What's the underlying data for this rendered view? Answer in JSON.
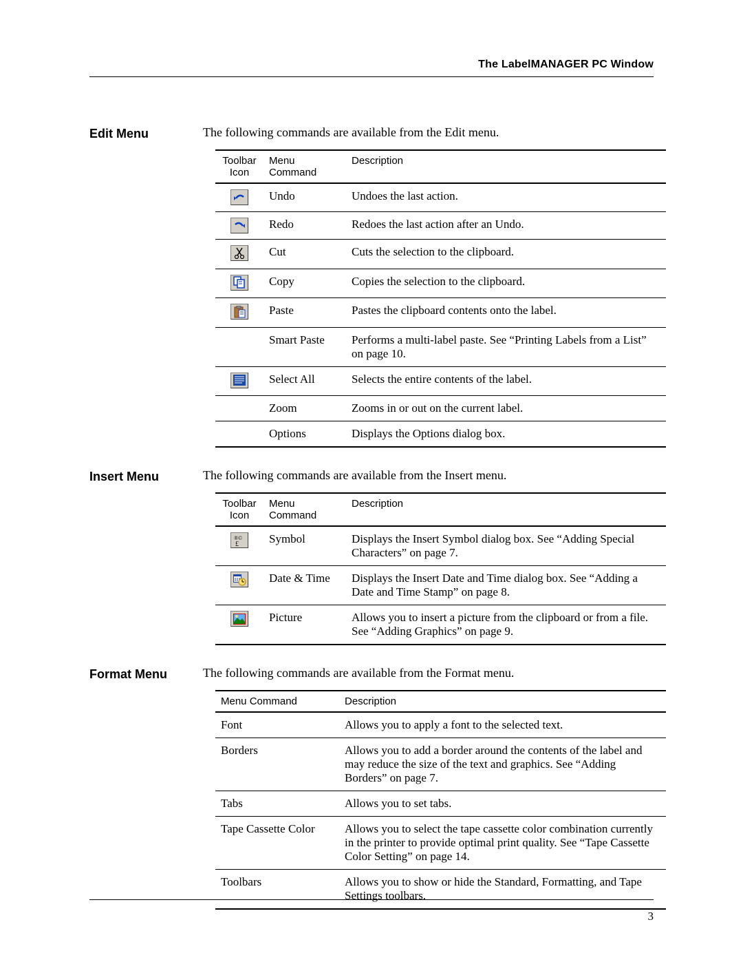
{
  "header": {
    "chapter": "The LabelMANAGER PC Window"
  },
  "page_number": "3",
  "columns": {
    "icon": "Toolbar Icon",
    "cmd": "Menu Command",
    "desc": "Description"
  },
  "sections": [
    {
      "heading": "Edit Menu",
      "intro": "The following commands are available from the Edit menu.",
      "has_icon_col": true,
      "rows": [
        {
          "icon": "undo-icon",
          "cmd": "Undo",
          "desc": "Undoes the last action."
        },
        {
          "icon": "redo-icon",
          "cmd": "Redo",
          "desc": "Redoes the last action after an Undo."
        },
        {
          "icon": "cut-icon",
          "cmd": "Cut",
          "desc": "Cuts the selection to the clipboard."
        },
        {
          "icon": "copy-icon",
          "cmd": "Copy",
          "desc": "Copies the selection to the clipboard."
        },
        {
          "icon": "paste-icon",
          "cmd": "Paste",
          "desc": "Pastes the clipboard contents onto the label."
        },
        {
          "icon": "",
          "cmd": "Smart Paste",
          "desc": "Performs a multi-label paste. See “Printing Labels from a List” on page 10."
        },
        {
          "icon": "selectall-icon",
          "cmd": "Select All",
          "desc": "Selects the entire contents of the label."
        },
        {
          "icon": "",
          "cmd": "Zoom",
          "desc": "Zooms in or out on the current label."
        },
        {
          "icon": "",
          "cmd": "Options",
          "desc": "Displays the Options dialog box."
        }
      ]
    },
    {
      "heading": "Insert Menu",
      "intro": "The following commands are available from the Insert menu.",
      "has_icon_col": true,
      "rows": [
        {
          "icon": "symbol-icon",
          "cmd": "Symbol",
          "desc": "Displays the Insert Symbol dialog box. See “Adding Special Characters” on page 7."
        },
        {
          "icon": "datetime-icon",
          "cmd": "Date & Time",
          "desc": "Displays the Insert Date and Time dialog box. See “Adding a Date and Time Stamp” on page 8."
        },
        {
          "icon": "picture-icon",
          "cmd": "Picture",
          "desc": "Allows you to insert a picture from the clipboard or from a file. See “Adding Graphics” on page 9."
        }
      ]
    },
    {
      "heading": "Format Menu",
      "intro": "The following commands are available from the Format menu.",
      "has_icon_col": false,
      "rows": [
        {
          "cmd": "Font",
          "desc": "Allows you to apply a font to the selected text."
        },
        {
          "cmd": "Borders",
          "desc": "Allows you to add a border around the contents of the label and may reduce the size of the text and graphics. See “Adding Borders” on page 7."
        },
        {
          "cmd": "Tabs",
          "desc": "Allows you to set tabs."
        },
        {
          "cmd": "Tape Cassette Color",
          "desc": "Allows you to select the tape cassette color combination currently in the printer to provide optimal print quality. See “Tape Cassette Color Setting” on page 14."
        },
        {
          "cmd": "Toolbars",
          "desc": "Allows you to show or hide the Standard, Formatting, and Tape Settings toolbars."
        }
      ]
    }
  ],
  "icon_glyphs": {
    "undo-icon": {
      "type": "svg",
      "svg": "<svg width='18' height='14' viewBox='0 0 18 14'><path d='M4 8 Q9 1 15 6' stroke='#0a3ec2' stroke-width='2.5' fill='none'/><path d='M4 8 L1 5 L1 11 Z' fill='#0a3ec2'/></svg>"
    },
    "redo-icon": {
      "type": "svg",
      "svg": "<svg width='18' height='14' viewBox='0 0 18 14'><path d='M14 8 Q9 1 3 6' stroke='#0a3ec2' stroke-width='2.5' fill='none'/><path d='M14 8 L17 5 L17 11 Z' fill='#0a3ec2'/></svg>"
    },
    "cut-icon": {
      "type": "svg",
      "svg": "<svg width='16' height='18' viewBox='0 0 16 18'><path d='M4 1 L11 12 M12 1 L5 12' stroke='#000' stroke-width='1.5' fill='none'/><circle cx='4' cy='14' r='2.5' stroke='#000' stroke-width='1.2' fill='none'/><circle cx='12' cy='14' r='2.5' stroke='#000' stroke-width='1.2' fill='none'/></svg>"
    },
    "copy-icon": {
      "type": "svg",
      "svg": "<svg width='18' height='18' viewBox='0 0 18 18'><rect x='1' y='1' width='10' height='12' fill='#fff' stroke='#0a3ec2' stroke-width='1.5'/><rect x='6' y='5' width='10' height='12' fill='#fff' stroke='#0a3ec2' stroke-width='1.5'/><line x1='8' y1='8' x2='13' y2='8' stroke='#0a3ec2'/><line x1='8' y1='11' x2='13' y2='11' stroke='#0a3ec2'/></svg>"
    },
    "paste-icon": {
      "type": "svg",
      "svg": "<svg width='18' height='18' viewBox='0 0 18 18'><rect x='2' y='2' width='12' height='15' fill='#b87333' stroke='#6b3e12'/><rect x='5' y='0' width='6' height='4' rx='1' fill='#888' stroke='#555'/><rect x='8' y='6' width='9' height='11' fill='#fff' stroke='#0a3ec2'/><line x1='10' y1='9' x2='15' y2='9' stroke='#0a3ec2'/><line x1='10' y1='12' x2='15' y2='12' stroke='#0a3ec2'/></svg>"
    },
    "selectall-icon": {
      "type": "svg",
      "svg": "<svg width='20' height='18' viewBox='0 0 20 18'><rect x='1' y='1' width='18' height='16' fill='#1b4aa6'/><line x1='3' y1='4' x2='17' y2='4' stroke='#fff'/><line x1='3' y1='7' x2='17' y2='7' stroke='#fff'/><line x1='3' y1='10' x2='17' y2='10' stroke='#fff'/><line x1='3' y1='13' x2='14' y2='13' stroke='#fff'/></svg>"
    },
    "symbol-icon": {
      "type": "svg",
      "svg": "<svg width='20' height='18' viewBox='0 0 20 18'><text x='2' y='8' font-size='8' font-family='serif' fill='#000'>®©</text><text x='4' y='17' font-size='10' font-family='serif' fill='#000'>£</text></svg>"
    },
    "datetime-icon": {
      "type": "svg",
      "svg": "<svg width='20' height='18' viewBox='0 0 20 18'><rect x='1' y='1' width='12' height='12' fill='#1b4aa6'/><rect x='2' y='4' width='10' height='8' fill='#fff'/><line x1='4' y1='6' x2='4' y2='11' stroke='#1b4aa6'/><line x1='7' y1='6' x2='7' y2='11' stroke='#1b4aa6'/><line x1='10' y1='6' x2='10' y2='11' stroke='#1b4aa6'/><circle cx='14' cy='12' r='5' fill='#ffe070' stroke='#b88800'/><line x1='14' y1='12' x2='14' y2='8.5' stroke='#000'/><line x1='14' y1='12' x2='17' y2='12' stroke='#000'/></svg>"
    },
    "picture-icon": {
      "type": "svg",
      "svg": "<svg width='20' height='18' viewBox='0 0 20 18'><rect x='1' y='1' width='18' height='16' fill='#c00' /><rect x='2' y='2' width='16' height='14' fill='#60b0ff'/><path d='M2 13 L7 7 L11 11 L14 8 L18 13 L18 16 L2 16 Z' fill='#108010'/><circle cx='6' cy='5' r='2' fill='#ffe070'/></svg>"
    }
  }
}
